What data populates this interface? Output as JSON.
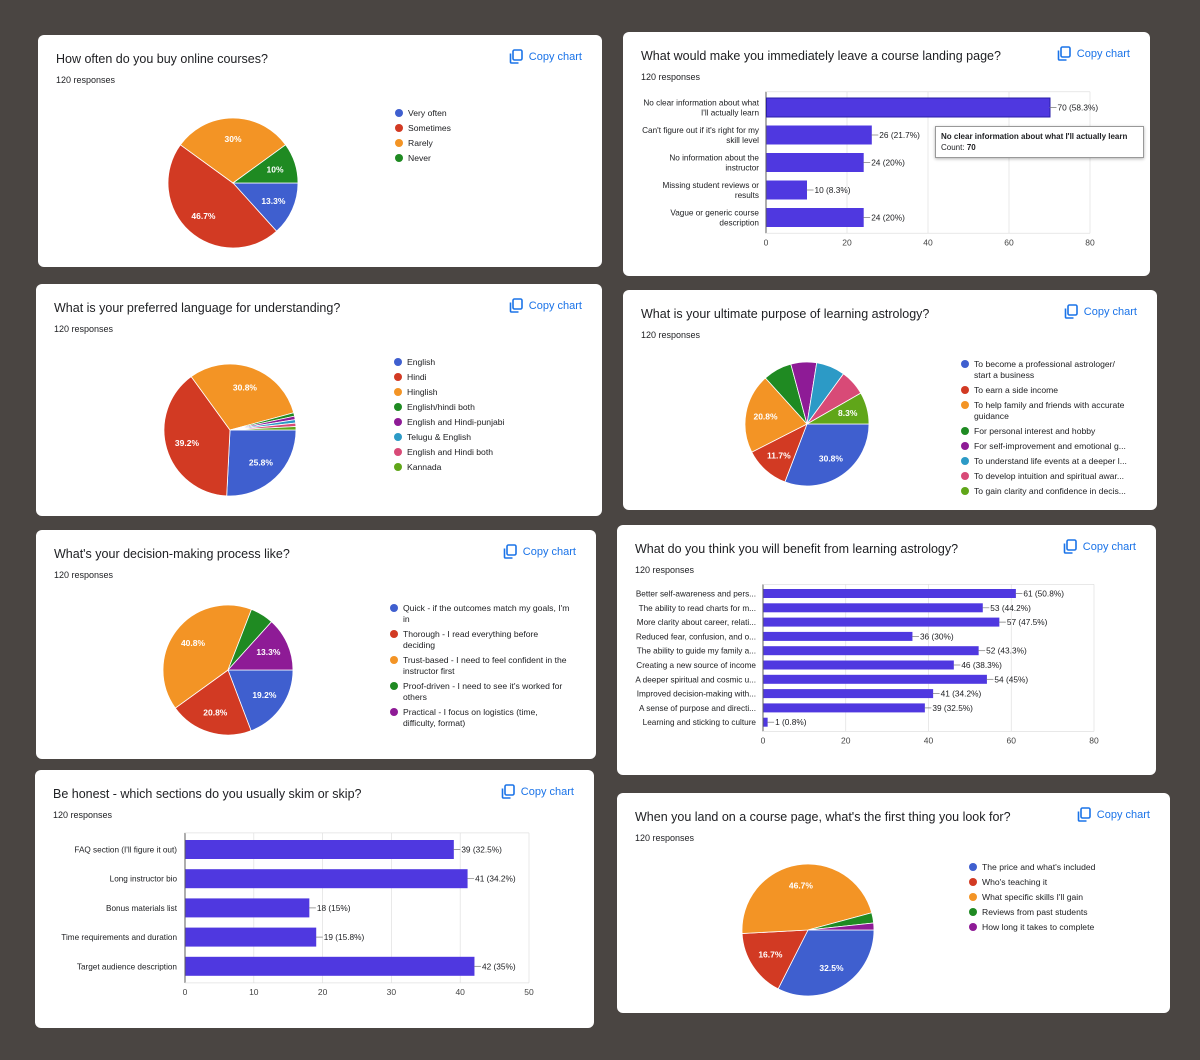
{
  "copy_label": "Copy chart",
  "charts": [
    {
      "id": "c1",
      "title": "How often do you buy online courses?",
      "responses": "120 responses",
      "chart_data": {
        "type": "pie",
        "labels": [
          "Very often",
          "Sometimes",
          "Rarely",
          "Never"
        ],
        "values": [
          13.3,
          46.7,
          30,
          10
        ],
        "slice_labels": [
          "13.3%",
          "46.7%",
          "30%",
          "10%"
        ],
        "colors": [
          "#3f5fcf",
          "#d23a23",
          "#f39425",
          "#1f8a22"
        ]
      },
      "legend": [
        {
          "label": "Very often",
          "color": "#3f5fcf"
        },
        {
          "label": "Sometimes",
          "color": "#d23a23"
        },
        {
          "label": "Rarely",
          "color": "#f39425"
        },
        {
          "label": "Never",
          "color": "#1f8a22"
        }
      ]
    },
    {
      "id": "c2",
      "title": "What would make you immediately leave a course landing page?",
      "responses": "120 responses",
      "chart_data": {
        "type": "bar",
        "categories": [
          [
            "No clear information about what",
            "I'll actually learn"
          ],
          [
            "Can't figure out if it's right for my",
            "skill level"
          ],
          [
            "No information about the",
            "instructor"
          ],
          [
            "Missing student reviews or",
            "results"
          ],
          [
            "Vague or generic course",
            "description"
          ]
        ],
        "values": [
          70,
          26,
          24,
          10,
          24
        ],
        "value_labels": [
          "70 (58.3%)",
          "26 (21.7%)",
          "24 (20%)",
          "10 (8.3%)",
          "24 (20%)"
        ],
        "xlim": [
          0,
          80
        ],
        "ticks": [
          0,
          20,
          40,
          60,
          80
        ],
        "color": "#4f38e0"
      },
      "tooltip": {
        "title": "No clear information about what I'll actually learn",
        "count_label": "Count:",
        "count": "70"
      }
    },
    {
      "id": "c3",
      "title": "What is your preferred language for understanding?",
      "responses": "120 responses",
      "chart_data": {
        "type": "pie",
        "labels": [
          "English",
          "Hindi",
          "Hinglish",
          "English/hindi both",
          "English and Hindi-punjabi",
          "Telugu & English",
          "English and Hindi both",
          "Kannada"
        ],
        "values": [
          25.8,
          39.2,
          30.8,
          0.84,
          0.84,
          0.84,
          0.84,
          0.84
        ],
        "slice_labels": [
          "25.8%",
          "39.2%",
          "30.8%",
          "",
          "",
          "",
          "",
          ""
        ],
        "colors": [
          "#3f5fcf",
          "#d23a23",
          "#f39425",
          "#1f8a22",
          "#8e1b96",
          "#2c9ac6",
          "#d84a77",
          "#60a619"
        ]
      },
      "legend": [
        {
          "label": "English",
          "color": "#3f5fcf"
        },
        {
          "label": "Hindi",
          "color": "#d23a23"
        },
        {
          "label": "Hinglish",
          "color": "#f39425"
        },
        {
          "label": "English/hindi both",
          "color": "#1f8a22"
        },
        {
          "label": "English and Hindi-punjabi",
          "color": "#8e1b96"
        },
        {
          "label": "Telugu & English",
          "color": "#2c9ac6"
        },
        {
          "label": "English and Hindi both",
          "color": "#d84a77"
        },
        {
          "label": "Kannada",
          "color": "#60a619"
        }
      ]
    },
    {
      "id": "c4",
      "title": "What is your ultimate purpose of learning astrology?",
      "responses": "120 responses",
      "chart_data": {
        "type": "pie",
        "labels": [
          "To become a professional astrologer/ start a business",
          "To earn a side income",
          "To help family and friends with accurate guidance",
          "For personal interest and hobby",
          "For self-improvement and emotional g...",
          "To understand life events at a deeper l...",
          "To develop intuition and spiritual awar...",
          "To gain clarity and confidence in decis..."
        ],
        "values": [
          30.8,
          11.7,
          20.8,
          7.5,
          6.7,
          7.5,
          6.7,
          8.3
        ],
        "slice_labels": [
          "30.8%",
          "11.7%",
          "20.8%",
          "",
          "",
          "",
          "",
          "8.3%"
        ],
        "colors": [
          "#3f5fcf",
          "#d23a23",
          "#f39425",
          "#1f8a22",
          "#8e1b96",
          "#2c9ac6",
          "#d84a77",
          "#60a619"
        ]
      },
      "legend": [
        {
          "label": "To become a professional astrologer/ start a business",
          "color": "#3f5fcf"
        },
        {
          "label": "To earn a side income",
          "color": "#d23a23"
        },
        {
          "label": "To help family and friends with accurate guidance",
          "color": "#f39425"
        },
        {
          "label": "For personal interest and hobby",
          "color": "#1f8a22"
        },
        {
          "label": "For self-improvement and emotional g...",
          "color": "#8e1b96"
        },
        {
          "label": "To understand life events at a deeper l...",
          "color": "#2c9ac6"
        },
        {
          "label": "To develop intuition and spiritual awar...",
          "color": "#d84a77"
        },
        {
          "label": "To gain clarity and confidence in decis...",
          "color": "#60a619"
        }
      ]
    },
    {
      "id": "c5",
      "title": "What's your decision-making process like?",
      "responses": "120 responses",
      "chart_data": {
        "type": "pie",
        "labels": [
          "Quick - if the outcomes match my goals, I'm in",
          "Thorough - I read everything before deciding",
          "Trust-based - I need to feel confident in the instructor first",
          "Proof-driven - I need to see it's worked for others",
          "Practical - I focus on logistics (time, difficulty, format)"
        ],
        "values": [
          19.2,
          20.8,
          40.8,
          5.8,
          13.3
        ],
        "slice_labels": [
          "19.2%",
          "20.8%",
          "40.8%",
          "",
          "13.3%"
        ],
        "colors": [
          "#3f5fcf",
          "#d23a23",
          "#f39425",
          "#1f8a22",
          "#8e1b96"
        ]
      },
      "legend": [
        {
          "label": "Quick - if the outcomes match my goals, I'm in",
          "color": "#3f5fcf"
        },
        {
          "label": "Thorough - I read everything before deciding",
          "color": "#d23a23"
        },
        {
          "label": "Trust-based - I need to feel confident in the instructor first",
          "color": "#f39425"
        },
        {
          "label": "Proof-driven - I need to see it's worked for others",
          "color": "#1f8a22"
        },
        {
          "label": "Practical - I focus on logistics (time, difficulty, format)",
          "color": "#8e1b96"
        }
      ]
    },
    {
      "id": "c6",
      "title": "What do you think you will benefit from learning astrology?",
      "responses": "120 responses",
      "chart_data": {
        "type": "bar",
        "categories": [
          [
            "Better self-awareness and pers..."
          ],
          [
            "The ability to read charts for m..."
          ],
          [
            "More clarity about career, relati..."
          ],
          [
            "Reduced fear, confusion, and o..."
          ],
          [
            "The ability to guide my family a..."
          ],
          [
            "Creating a new source of income"
          ],
          [
            "A deeper spiritual and cosmic u..."
          ],
          [
            "Improved decision-making with..."
          ],
          [
            "A sense of purpose and directi..."
          ],
          [
            "Learning and sticking to culture"
          ]
        ],
        "values": [
          61,
          53,
          57,
          36,
          52,
          46,
          54,
          41,
          39,
          1
        ],
        "value_labels": [
          "61 (50.8%)",
          "53 (44.2%)",
          "57 (47.5%)",
          "36 (30%)",
          "52 (43.3%)",
          "46 (38.3%)",
          "54 (45%)",
          "41 (34.2%)",
          "39 (32.5%)",
          "1 (0.8%)"
        ],
        "xlim": [
          0,
          80
        ],
        "ticks": [
          0,
          20,
          40,
          60,
          80
        ],
        "color": "#4f38e0"
      }
    },
    {
      "id": "c7",
      "title": "Be honest - which sections do you usually skim or skip?",
      "responses": "120 responses",
      "chart_data": {
        "type": "bar",
        "categories": [
          [
            "FAQ section (I'll figure it out)"
          ],
          [
            "Long instructor bio"
          ],
          [
            "Bonus materials list"
          ],
          [
            "Time requirements and duration"
          ],
          [
            "Target audience description"
          ]
        ],
        "values": [
          39,
          41,
          18,
          19,
          42
        ],
        "value_labels": [
          "39 (32.5%)",
          "41 (34.2%)",
          "18 (15%)",
          "19 (15.8%)",
          "42 (35%)"
        ],
        "xlim": [
          0,
          50
        ],
        "ticks": [
          0,
          10,
          20,
          30,
          40,
          50
        ],
        "color": "#4f38e0"
      }
    },
    {
      "id": "c8",
      "title": "When you land on a course page, what's the first thing you look for?",
      "responses": "120 responses",
      "chart_data": {
        "type": "pie",
        "labels": [
          "The price and what's included",
          "Who's teaching it",
          "What specific skills I'll gain",
          "Reviews from past students",
          "How long it takes to complete"
        ],
        "values": [
          32.5,
          16.7,
          46.7,
          2.5,
          1.7
        ],
        "slice_labels": [
          "32.5%",
          "16.7%",
          "46.7%",
          "",
          ""
        ],
        "colors": [
          "#3f5fcf",
          "#d23a23",
          "#f39425",
          "#1f8a22",
          "#8e1b96"
        ]
      },
      "legend": [
        {
          "label": "The price and what's included",
          "color": "#3f5fcf"
        },
        {
          "label": "Who's teaching it",
          "color": "#d23a23"
        },
        {
          "label": "What specific skills I'll gain",
          "color": "#f39425"
        },
        {
          "label": "Reviews from past students",
          "color": "#1f8a22"
        },
        {
          "label": "How long it takes to complete",
          "color": "#8e1b96"
        }
      ]
    }
  ]
}
